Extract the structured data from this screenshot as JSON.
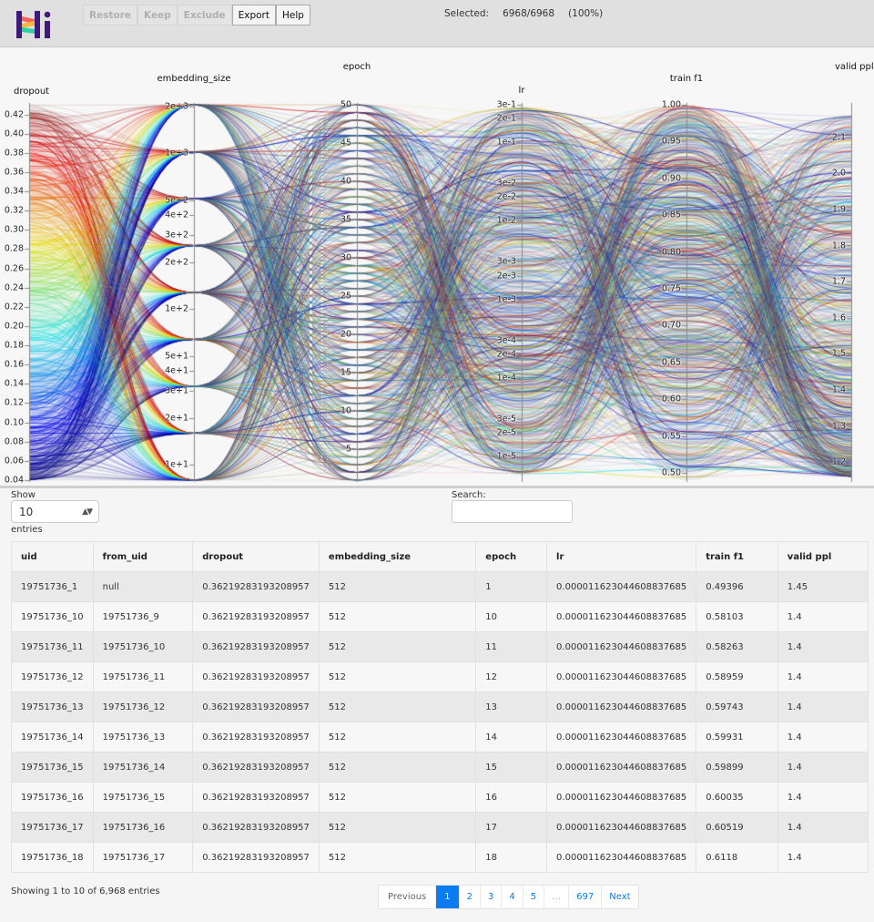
{
  "header": {
    "logo_text": "Hi",
    "toolbar": [
      {
        "label": "Restore",
        "enabled": false
      },
      {
        "label": "Keep",
        "enabled": false
      },
      {
        "label": "Exclude",
        "enabled": false
      },
      {
        "label": "Export",
        "enabled": true
      },
      {
        "label": "Help",
        "enabled": true
      }
    ],
    "selected_label": "Selected:",
    "selected_count": "6968/6968",
    "selected_percent": "(100%)"
  },
  "colors": {
    "header_bg": "#e0e0e0",
    "accent": "#0a7bf0",
    "logo_purple": "#3f1a78"
  },
  "chart_data": {
    "type": "parallel_coordinates",
    "title": "",
    "total_lines": 6968,
    "color_by": "dropout",
    "colormap": "jet",
    "axes": [
      {
        "name": "dropout",
        "scale": "linear",
        "range": [
          0.04,
          0.43
        ],
        "ticks": [
          "0.42",
          "0.40",
          "0.38",
          "0.36",
          "0.34",
          "0.32",
          "0.30",
          "0.28",
          "0.26",
          "0.24",
          "0.22",
          "0.20",
          "0.18",
          "0.16",
          "0.14",
          "0.12",
          "0.10",
          "0.08",
          "0.06",
          "0.04"
        ]
      },
      {
        "name": "embedding_size",
        "scale": "log",
        "range": [
          8,
          2048
        ],
        "ticks": [
          "2e+3",
          "1e+3",
          "5e+2",
          "4e+2",
          "3e+2",
          "2e+2",
          "1e+2",
          "5e+1",
          "4e+1",
          "3e+1",
          "2e+1",
          "1e+1"
        ],
        "values": [
          8,
          16,
          32,
          64,
          128,
          256,
          512,
          1024,
          2048
        ]
      },
      {
        "name": "epoch",
        "scale": "linear",
        "range": [
          1,
          50
        ],
        "ticks": [
          "50",
          "45",
          "40",
          "35",
          "30",
          "25",
          "20",
          "15",
          "10",
          "5"
        ]
      },
      {
        "name": "lr",
        "scale": "log",
        "range": [
          5e-06,
          0.3
        ],
        "ticks": [
          "3e-1",
          "2e-1",
          "1e-1",
          "3e-2",
          "2e-2",
          "1e-2",
          "3e-3",
          "2e-3",
          "1e-3",
          "3e-4",
          "2e-4",
          "1e-4",
          "3e-5",
          "2e-5",
          "1e-5"
        ]
      },
      {
        "name": "train f1",
        "scale": "linear",
        "range": [
          0.49,
          1.0
        ],
        "ticks": [
          "1.00",
          "0.95",
          "0.90",
          "0.85",
          "0.80",
          "0.75",
          "0.70",
          "0.65",
          "0.60",
          "0.55",
          "0.50"
        ]
      },
      {
        "name": "valid ppl",
        "scale": "linear",
        "range": [
          1.15,
          2.19
        ],
        "ticks": [
          "2.1",
          "2.0",
          "1.9",
          "1.8",
          "1.7",
          "1.6",
          "1.5",
          "1.4",
          "1.3",
          "1.2"
        ]
      }
    ]
  },
  "table": {
    "show_label": "Show",
    "page_size": "10",
    "entries_label": "entries",
    "search_label": "Search:",
    "search_value": "",
    "columns": [
      "uid",
      "from_uid",
      "dropout",
      "embedding_size",
      "epoch",
      "lr",
      "train f1",
      "valid ppl"
    ],
    "rows": [
      [
        "19751736_1",
        "null",
        "0.36219283193208957",
        "512",
        "1",
        "0.000011623044608837685",
        "0.49396",
        "1.45"
      ],
      [
        "19751736_10",
        "19751736_9",
        "0.36219283193208957",
        "512",
        "10",
        "0.000011623044608837685",
        "0.58103",
        "1.4"
      ],
      [
        "19751736_11",
        "19751736_10",
        "0.36219283193208957",
        "512",
        "11",
        "0.000011623044608837685",
        "0.58263",
        "1.4"
      ],
      [
        "19751736_12",
        "19751736_11",
        "0.36219283193208957",
        "512",
        "12",
        "0.000011623044608837685",
        "0.58959",
        "1.4"
      ],
      [
        "19751736_13",
        "19751736_12",
        "0.36219283193208957",
        "512",
        "13",
        "0.000011623044608837685",
        "0.59743",
        "1.4"
      ],
      [
        "19751736_14",
        "19751736_13",
        "0.36219283193208957",
        "512",
        "14",
        "0.000011623044608837685",
        "0.59931",
        "1.4"
      ],
      [
        "19751736_15",
        "19751736_14",
        "0.36219283193208957",
        "512",
        "15",
        "0.000011623044608837685",
        "0.59899",
        "1.4"
      ],
      [
        "19751736_16",
        "19751736_15",
        "0.36219283193208957",
        "512",
        "16",
        "0.000011623044608837685",
        "0.60035",
        "1.4"
      ],
      [
        "19751736_17",
        "19751736_16",
        "0.36219283193208957",
        "512",
        "17",
        "0.000011623044608837685",
        "0.60519",
        "1.4"
      ],
      [
        "19751736_18",
        "19751736_17",
        "0.36219283193208957",
        "512",
        "18",
        "0.000011623044608837685",
        "0.6118",
        "1.4"
      ]
    ],
    "info": "Showing 1 to 10 of 6,968 entries",
    "pagination": {
      "previous": "Previous",
      "pages": [
        "1",
        "2",
        "3",
        "4",
        "5",
        "…",
        "697"
      ],
      "current": "1",
      "next": "Next"
    }
  }
}
